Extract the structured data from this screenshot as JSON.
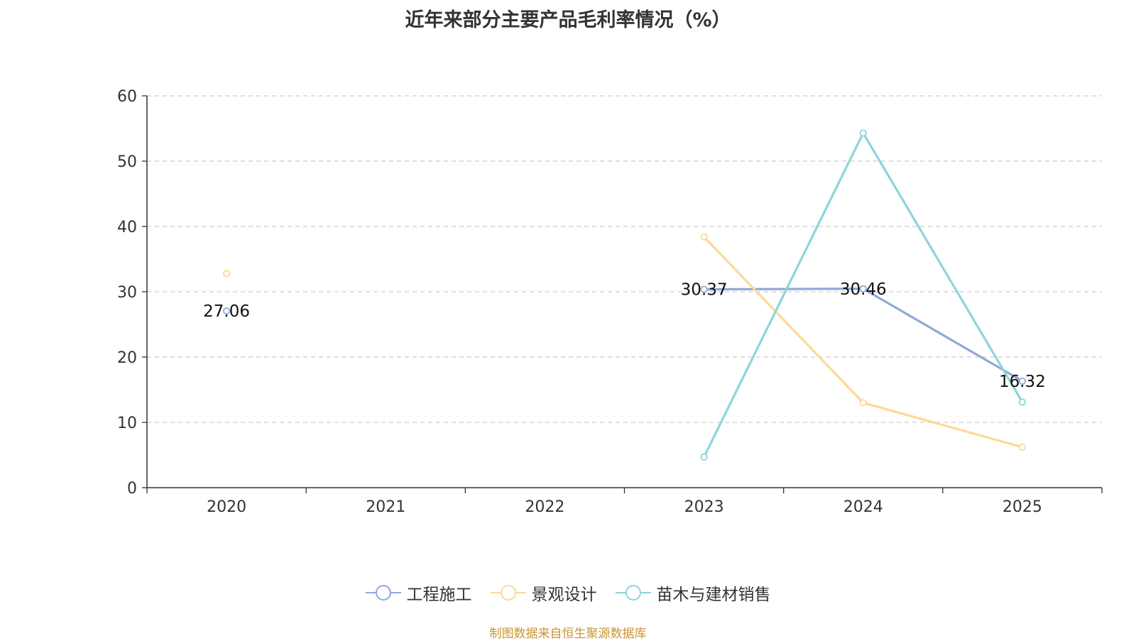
{
  "chart_data": {
    "type": "line",
    "title": "近年来部分主要产品毛利率情况（%）",
    "categories": [
      "2020",
      "2021",
      "2022",
      "2023",
      "2024",
      "2025"
    ],
    "ylim": [
      0,
      60
    ],
    "yticks": [
      0,
      10,
      20,
      30,
      40,
      50,
      60
    ],
    "grid": true,
    "legend_position": "bottom",
    "series": [
      {
        "name": "工程施工",
        "color": "#8fa9d8",
        "values": [
          27.06,
          null,
          null,
          30.37,
          30.46,
          16.32
        ],
        "labels": [
          "27.06",
          null,
          null,
          "30.37",
          "30.46",
          "16.32"
        ]
      },
      {
        "name": "景观设计",
        "color": "#fcd995",
        "values": [
          32.8,
          null,
          null,
          38.4,
          13.0,
          6.2
        ],
        "labels": [
          null,
          null,
          null,
          null,
          null,
          null
        ]
      },
      {
        "name": "苗木与建材销售",
        "color": "#8dd5da",
        "values": [
          null,
          null,
          null,
          4.7,
          54.3,
          13.1
        ],
        "labels": [
          null,
          null,
          null,
          null,
          null,
          null
        ]
      }
    ]
  },
  "footer": {
    "source": "制图数据来自恒生聚源数据库"
  }
}
